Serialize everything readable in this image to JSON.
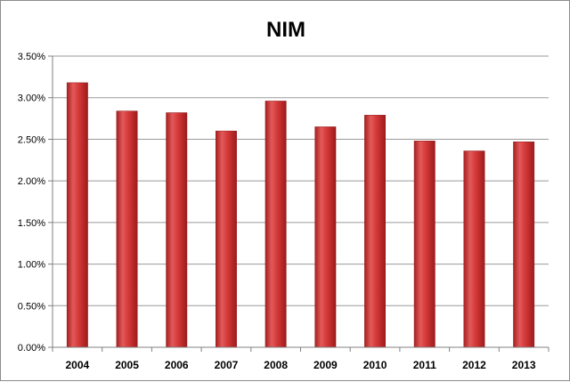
{
  "chart_data": {
    "type": "bar",
    "title": "NIM",
    "xlabel": "",
    "ylabel": "",
    "categories": [
      "2004",
      "2005",
      "2006",
      "2007",
      "2008",
      "2009",
      "2010",
      "2011",
      "2012",
      "2013"
    ],
    "values": [
      3.18,
      2.84,
      2.82,
      2.6,
      2.96,
      2.65,
      2.79,
      2.48,
      2.36,
      2.47
    ],
    "ylim": [
      0,
      3.5
    ],
    "yticks": [
      0,
      0.5,
      1.0,
      1.5,
      2.0,
      2.5,
      3.0,
      3.5
    ],
    "ytick_labels": [
      "0.00%",
      "0.50%",
      "1.00%",
      "1.50%",
      "2.00%",
      "2.50%",
      "3.00%",
      "3.50%"
    ],
    "grid": true,
    "legend": "none",
    "bar_color": "#d63a3a"
  }
}
